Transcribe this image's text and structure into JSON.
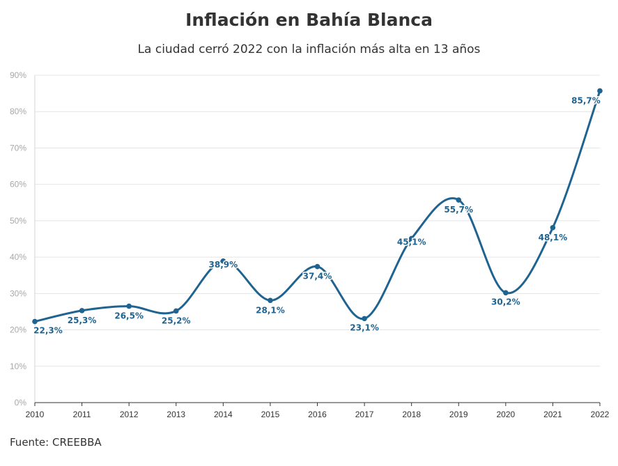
{
  "header": {
    "title": "Inflación en Bahía Blanca",
    "subtitle": "La ciudad cerró 2022 con la inflación más alta en 13 años"
  },
  "footer": {
    "source": "Fuente: CREEBBA"
  },
  "chart_data": {
    "type": "line",
    "title": "Inflación en Bahía Blanca",
    "subtitle": "La ciudad cerró 2022 con la inflación más alta en 13 años",
    "xlabel": "",
    "ylabel": "",
    "ylim": [
      0,
      90
    ],
    "y_ticks": [
      "0%",
      "10%",
      "20%",
      "30%",
      "40%",
      "50%",
      "60%",
      "70%",
      "80%",
      "90%"
    ],
    "grid": true,
    "smooth": true,
    "color": "#1f6390",
    "x": [
      "2010",
      "2011",
      "2012",
      "2013",
      "2014",
      "2015",
      "2016",
      "2017",
      "2018",
      "2019",
      "2020",
      "2021",
      "2022"
    ],
    "values": [
      22.3,
      25.3,
      26.5,
      25.2,
      38.9,
      28.1,
      37.4,
      23.1,
      45.1,
      55.7,
      30.2,
      48.1,
      85.7
    ],
    "labels": [
      "22,3%",
      "25,3%",
      "26,5%",
      "25,2%",
      "38,9%",
      "28,1%",
      "37,4%",
      "23,1%",
      "45,1%",
      "55,7%",
      "30,2%",
      "48,1%",
      "85,7%"
    ]
  }
}
